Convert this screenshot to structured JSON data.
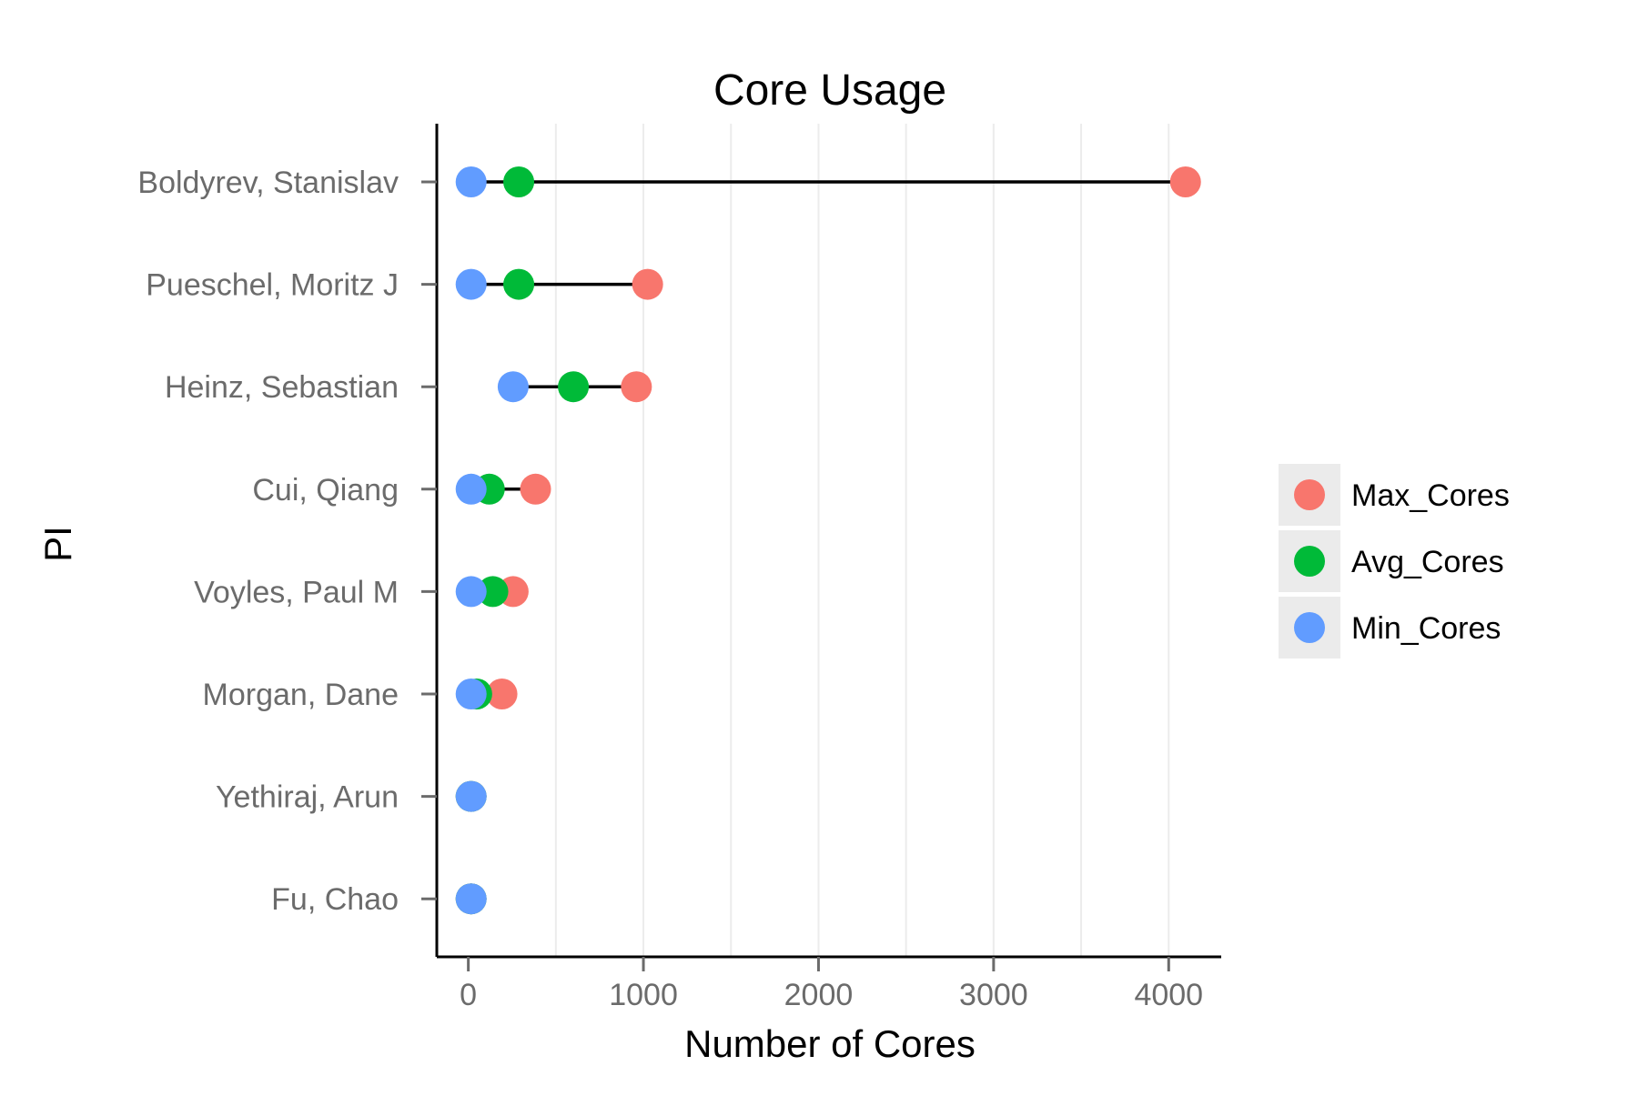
{
  "chart_data": {
    "type": "dumbbell",
    "title": "Core Usage",
    "xlabel": "Number of Cores",
    "ylabel": "PI",
    "xlim": [
      -180,
      4300
    ],
    "xticks": [
      0,
      1000,
      2000,
      3000,
      4000
    ],
    "xtick_labels": [
      "0",
      "1000",
      "2000",
      "3000",
      "4000"
    ],
    "vertical_grid": true,
    "legend_position": "right",
    "categories": [
      "Boldyrev, Stanislav",
      "Pueschel, Moritz J",
      "Heinz, Sebastian",
      "Cui, Qiang",
      "Voyles, Paul M",
      "Morgan, Dane",
      "Yethiraj, Arun",
      "Fu, Chao"
    ],
    "series": [
      {
        "name": "Max_Cores",
        "color": "#F8766D",
        "values": [
          4096,
          1024,
          960,
          384,
          256,
          192,
          16,
          16
        ]
      },
      {
        "name": "Avg_Cores",
        "color": "#00BA38",
        "values": [
          288,
          288,
          600,
          120,
          140,
          48,
          16,
          16
        ]
      },
      {
        "name": "Min_Cores",
        "color": "#619CFF",
        "values": [
          16,
          16,
          256,
          16,
          16,
          16,
          16,
          16
        ]
      }
    ]
  }
}
